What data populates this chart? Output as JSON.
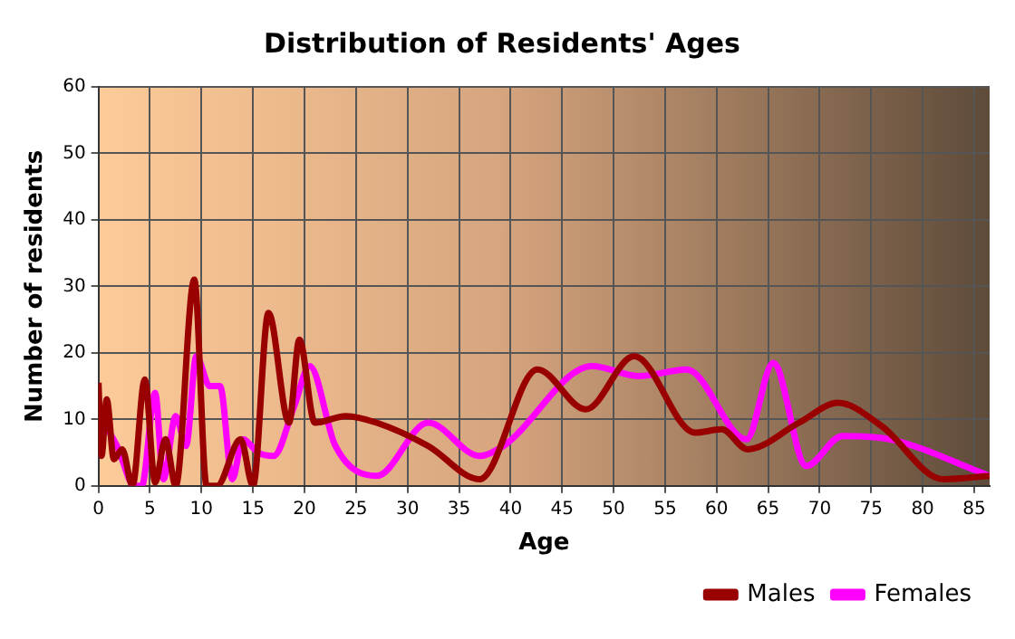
{
  "chart_data": {
    "type": "line",
    "title": "Distribution of Residents' Ages",
    "xlabel": "Age",
    "ylabel": "Number of residents",
    "xlim": [
      0,
      86.5
    ],
    "xticks": [
      0,
      5,
      10,
      15,
      20,
      25,
      30,
      35,
      40,
      45,
      50,
      55,
      60,
      65,
      70,
      75,
      80,
      85
    ],
    "ylim": [
      0,
      60
    ],
    "yticks": [
      0,
      10,
      20,
      30,
      40,
      50,
      60
    ],
    "grid": true,
    "legend": "bottom right",
    "marker": "none",
    "series": [
      {
        "name": "Males",
        "color": "#990000",
        "x": [
          0,
          0.3,
          0.8,
          1.5,
          2.3,
          3.3,
          4.5,
          5.5,
          6.5,
          7.5,
          9.3,
          10.5,
          11.5,
          13.8,
          15,
          16.5,
          18.5,
          19.5,
          21,
          24,
          27,
          32,
          37,
          42.6,
          47.3,
          52,
          57.9,
          60.5,
          63,
          68,
          71.8,
          76,
          82,
          86.5
        ],
        "values": [
          15.5,
          4.5,
          13,
          4,
          5.5,
          0,
          16,
          0.5,
          7,
          0,
          31,
          0,
          0,
          7,
          0,
          26,
          9.5,
          22,
          9.5,
          10.5,
          9.5,
          6,
          1,
          17.5,
          11.5,
          19.5,
          8,
          8.5,
          5.5,
          9.5,
          12.5,
          9,
          1,
          1.5
        ]
      },
      {
        "name": "Females",
        "color": "#ff00ff",
        "x": [
          0.3,
          1.8,
          3.5,
          4.2,
          5.5,
          6.3,
          7.5,
          8.5,
          9.5,
          10.8,
          11.8,
          13,
          14,
          15.5,
          17,
          19,
          20.5,
          23,
          27,
          32,
          37,
          39.3,
          47.9,
          52.5,
          57.1,
          62.9,
          65.5,
          68.7,
          72.2,
          76.8,
          86.5
        ],
        "values": [
          10,
          6,
          0,
          0,
          14,
          1,
          10.5,
          6,
          19.5,
          15,
          15,
          1,
          7,
          5,
          4.5,
          12,
          18,
          6,
          1.5,
          9.5,
          4.5,
          6,
          18,
          16.5,
          17.5,
          7,
          18.5,
          3,
          7.5,
          7,
          1.5
        ]
      }
    ]
  }
}
